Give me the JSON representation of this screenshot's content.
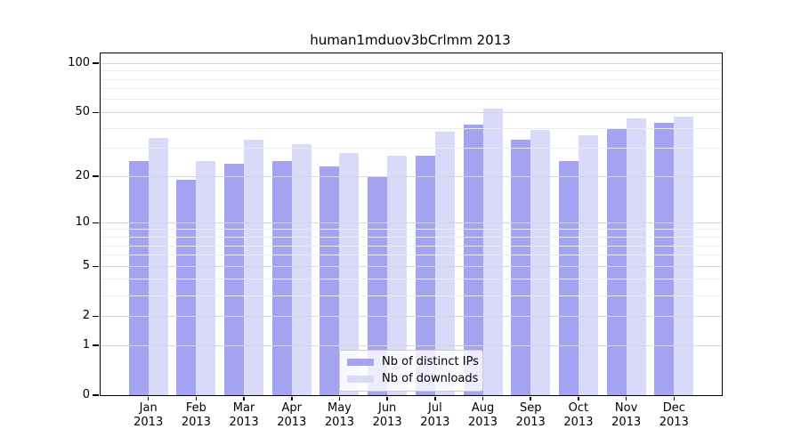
{
  "title": "human1mduov3bCrlmm 2013",
  "chart_data": {
    "type": "bar",
    "title": "human1mduov3bCrlmm 2013",
    "year": "2013",
    "categories": [
      "Jan",
      "Feb",
      "Mar",
      "Apr",
      "May",
      "Jun",
      "Jul",
      "Aug",
      "Sep",
      "Oct",
      "Nov",
      "Dec"
    ],
    "series": [
      {
        "name": "Nb of distinct IPs",
        "color": "#a3a3f2",
        "values": [
          25,
          19,
          24,
          25,
          23,
          20,
          27,
          42,
          34,
          25,
          40,
          43
        ]
      },
      {
        "name": "Nb of downloads",
        "color": "#d9d9fa",
        "values": [
          35,
          25,
          34,
          32,
          28,
          27,
          38,
          53,
          39,
          36,
          46,
          47
        ]
      }
    ],
    "xlabel": "",
    "ylabel": "",
    "yscale": "log10(1+x)",
    "ylim": [
      0,
      115
    ],
    "y_ticks": [
      0,
      1,
      2,
      5,
      10,
      20,
      50,
      100
    ],
    "y_minor_gridlines": [
      3,
      4,
      6,
      7,
      8,
      9,
      30,
      40,
      60,
      70,
      80,
      90
    ],
    "grid": "on",
    "legend_position": "bottom-center"
  },
  "colors": {
    "major_grid": "#d6d6d6",
    "minor_grid": "#ececec",
    "axis": "#000000",
    "legend_border": "#cccccc",
    "background": "#ffffff"
  }
}
